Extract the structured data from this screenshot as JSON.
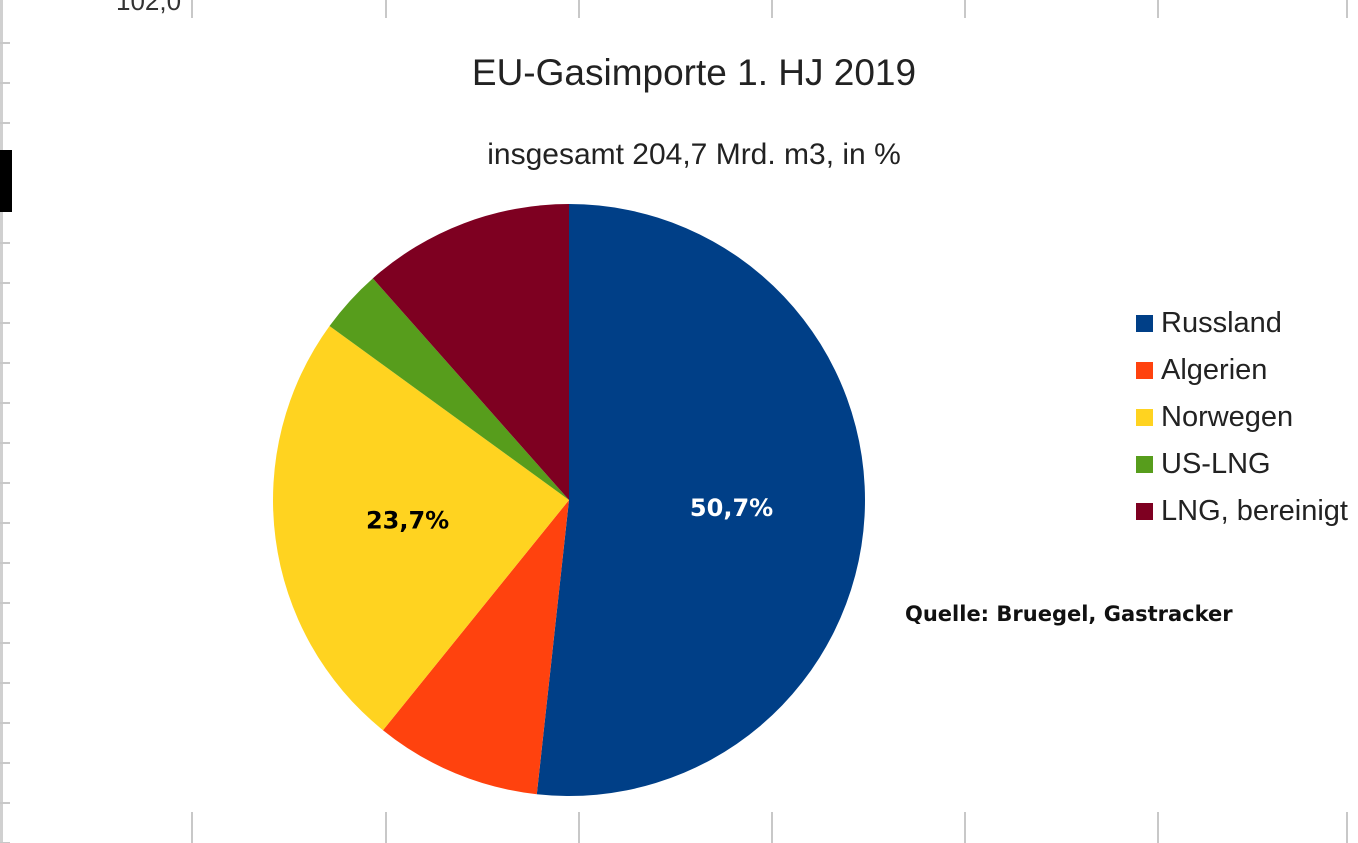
{
  "chart_data": {
    "type": "pie",
    "title": "EU-Gasimporte 1. HJ 2019",
    "subtitle": "insgesamt 204,7 Mrd. m3, in %",
    "slices": [
      {
        "name": "Russland",
        "value": 50.7,
        "color": "#003f87",
        "label": "50,7%",
        "label_color": "#ffffff"
      },
      {
        "name": "Algerien",
        "value": 8.9,
        "color": "#ff420e",
        "label": "",
        "label_color": "#ffffff"
      },
      {
        "name": "Norwegen",
        "value": 23.7,
        "color": "#ffd320",
        "label": "23,7%",
        "label_color": "#000000"
      },
      {
        "name": "US-LNG",
        "value": 3.4,
        "color": "#579d1c",
        "label": "",
        "label_color": "#ffffff"
      },
      {
        "name": "LNG, bereinigt",
        "value": 11.3,
        "color": "#7e0021",
        "label": "",
        "label_color": "#ffffff"
      }
    ],
    "start_angle_deg": 0,
    "direction": "clockwise",
    "legend_position": "right",
    "annotation": "Quelle: Bruegel, Gastracker"
  }
}
